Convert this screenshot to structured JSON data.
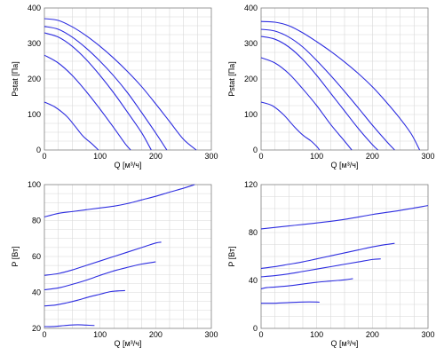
{
  "colors": {
    "curve": "#2d2de0",
    "grid": "#d8d8d8",
    "frame": "#808080"
  },
  "chart_data": [
    {
      "id": "pstat-left",
      "type": "line",
      "xlabel": "Q [м³/ч]",
      "ylabel": "Pstat [Па]",
      "xlim": [
        0,
        300
      ],
      "ylim": [
        0,
        400
      ],
      "xticks": [
        0,
        100,
        200,
        300
      ],
      "yticks": [
        0,
        100,
        200,
        300,
        400
      ],
      "grid": true,
      "series": [
        {
          "points": [
            [
              0,
              135
            ],
            [
              20,
              120
            ],
            [
              40,
              95
            ],
            [
              55,
              67
            ],
            [
              70,
              38
            ],
            [
              85,
              18
            ],
            [
              97,
              0
            ]
          ]
        },
        {
          "points": [
            [
              0,
              267
            ],
            [
              25,
              245
            ],
            [
              50,
              210
            ],
            [
              75,
              165
            ],
            [
              100,
              115
            ],
            [
              125,
              62
            ],
            [
              145,
              18
            ],
            [
              155,
              0
            ]
          ]
        },
        {
          "points": [
            [
              0,
              330
            ],
            [
              25,
              318
            ],
            [
              50,
              292
            ],
            [
              75,
              255
            ],
            [
              100,
              210
            ],
            [
              125,
              160
            ],
            [
              150,
              105
            ],
            [
              175,
              48
            ],
            [
              192,
              0
            ]
          ]
        },
        {
          "points": [
            [
              0,
              348
            ],
            [
              25,
              340
            ],
            [
              50,
              318
            ],
            [
              75,
              287
            ],
            [
              100,
              250
            ],
            [
              125,
              208
            ],
            [
              150,
              160
            ],
            [
              175,
              105
            ],
            [
              200,
              48
            ],
            [
              220,
              0
            ]
          ]
        },
        {
          "points": [
            [
              0,
              370
            ],
            [
              25,
              365
            ],
            [
              50,
              347
            ],
            [
              75,
              322
            ],
            [
              100,
              292
            ],
            [
              125,
              258
            ],
            [
              150,
              220
            ],
            [
              175,
              178
            ],
            [
              200,
              130
            ],
            [
              225,
              80
            ],
            [
              250,
              30
            ],
            [
              273,
              0
            ]
          ]
        }
      ]
    },
    {
      "id": "pstat-right",
      "type": "line",
      "xlabel": "Q [м³/ч]",
      "ylabel": "Pstat [Па]",
      "xlim": [
        0,
        300
      ],
      "ylim": [
        0,
        400
      ],
      "xticks": [
        0,
        100,
        200,
        300
      ],
      "yticks": [
        0,
        100,
        200,
        300,
        400
      ],
      "grid": true,
      "series": [
        {
          "points": [
            [
              0,
              135
            ],
            [
              20,
              125
            ],
            [
              40,
              100
            ],
            [
              60,
              65
            ],
            [
              75,
              42
            ],
            [
              90,
              25
            ],
            [
              100,
              10
            ],
            [
              105,
              0
            ]
          ]
        },
        {
          "points": [
            [
              0,
              260
            ],
            [
              25,
              245
            ],
            [
              50,
              215
            ],
            [
              75,
              172
            ],
            [
              100,
              125
            ],
            [
              125,
              72
            ],
            [
              150,
              25
            ],
            [
              163,
              0
            ]
          ]
        },
        {
          "points": [
            [
              0,
              320
            ],
            [
              25,
              312
            ],
            [
              50,
              290
            ],
            [
              75,
              255
            ],
            [
              100,
              210
            ],
            [
              125,
              160
            ],
            [
              150,
              110
            ],
            [
              175,
              60
            ],
            [
              200,
              15
            ],
            [
              210,
              0
            ]
          ]
        },
        {
          "points": [
            [
              0,
              340
            ],
            [
              25,
              335
            ],
            [
              50,
              318
            ],
            [
              75,
              290
            ],
            [
              100,
              252
            ],
            [
              125,
              210
            ],
            [
              150,
              165
            ],
            [
              175,
              118
            ],
            [
              200,
              70
            ],
            [
              225,
              25
            ],
            [
              240,
              0
            ]
          ]
        },
        {
          "points": [
            [
              0,
              362
            ],
            [
              25,
              360
            ],
            [
              50,
              350
            ],
            [
              75,
              330
            ],
            [
              100,
              305
            ],
            [
              125,
              278
            ],
            [
              150,
              248
            ],
            [
              175,
              215
            ],
            [
              200,
              178
            ],
            [
              225,
              135
            ],
            [
              250,
              88
            ],
            [
              270,
              45
            ],
            [
              285,
              0
            ]
          ]
        }
      ]
    },
    {
      "id": "power-left",
      "type": "line",
      "xlabel": "Q [м³/ч]",
      "ylabel": "P [Вт]",
      "xlim": [
        0,
        300
      ],
      "ylim": [
        20,
        100
      ],
      "xticks": [
        0,
        100,
        200,
        300
      ],
      "yticks": [
        20,
        40,
        60,
        80,
        100
      ],
      "grid": true,
      "series": [
        {
          "points": [
            [
              0,
              21
            ],
            [
              15,
              21
            ],
            [
              30,
              21.4
            ],
            [
              45,
              21.8
            ],
            [
              60,
              22
            ],
            [
              75,
              21.8
            ],
            [
              90,
              21.6
            ]
          ]
        },
        {
          "points": [
            [
              0,
              32.5
            ],
            [
              20,
              33
            ],
            [
              40,
              34.2
            ],
            [
              60,
              35.7
            ],
            [
              80,
              37.5
            ],
            [
              100,
              39
            ],
            [
              120,
              40.5
            ],
            [
              145,
              41
            ]
          ]
        },
        {
          "points": [
            [
              0,
              41.5
            ],
            [
              25,
              42.5
            ],
            [
              50,
              44.5
            ],
            [
              75,
              46.8
            ],
            [
              100,
              49.5
            ],
            [
              125,
              52
            ],
            [
              150,
              54
            ],
            [
              175,
              55.8
            ],
            [
              200,
              57
            ]
          ]
        },
        {
          "points": [
            [
              0,
              49.5
            ],
            [
              25,
              50.5
            ],
            [
              50,
              52.5
            ],
            [
              75,
              55
            ],
            [
              100,
              57.5
            ],
            [
              125,
              60
            ],
            [
              150,
              62.5
            ],
            [
              175,
              65
            ],
            [
              200,
              67.5
            ],
            [
              210,
              68
            ]
          ]
        },
        {
          "points": [
            [
              0,
              82
            ],
            [
              25,
              84
            ],
            [
              50,
              85
            ],
            [
              75,
              86
            ],
            [
              100,
              87
            ],
            [
              125,
              88
            ],
            [
              150,
              89.5
            ],
            [
              175,
              91.5
            ],
            [
              200,
              93.5
            ],
            [
              225,
              95.8
            ],
            [
              250,
              98
            ],
            [
              270,
              100
            ]
          ]
        }
      ]
    },
    {
      "id": "power-right",
      "type": "line",
      "xlabel": "Q [м³/ч]",
      "ylabel": "P [Вт]",
      "xlim": [
        0,
        300
      ],
      "ylim": [
        0,
        120
      ],
      "xticks": [
        0,
        100,
        200,
        300
      ],
      "yticks": [
        0,
        40,
        80,
        120
      ],
      "grid": true,
      "series": [
        {
          "points": [
            [
              0,
              21
            ],
            [
              25,
              21
            ],
            [
              50,
              21.5
            ],
            [
              75,
              22
            ],
            [
              100,
              22
            ],
            [
              105,
              21.8
            ]
          ]
        },
        {
          "points": [
            [
              0,
              33
            ],
            [
              10,
              34
            ],
            [
              25,
              34.5
            ],
            [
              50,
              35.5
            ],
            [
              75,
              37
            ],
            [
              100,
              38.5
            ],
            [
              125,
              39.5
            ],
            [
              150,
              40.5
            ],
            [
              165,
              41.5
            ]
          ]
        },
        {
          "points": [
            [
              0,
              43
            ],
            [
              25,
              44
            ],
            [
              50,
              45.5
            ],
            [
              75,
              47.5
            ],
            [
              100,
              49.5
            ],
            [
              125,
              51.5
            ],
            [
              150,
              53.5
            ],
            [
              175,
              55.5
            ],
            [
              200,
              57.5
            ],
            [
              215,
              58
            ]
          ]
        },
        {
          "points": [
            [
              0,
              50
            ],
            [
              25,
              51.5
            ],
            [
              50,
              53.5
            ],
            [
              75,
              55.5
            ],
            [
              100,
              58
            ],
            [
              125,
              60.5
            ],
            [
              150,
              63
            ],
            [
              175,
              65.5
            ],
            [
              200,
              68
            ],
            [
              225,
              70
            ],
            [
              240,
              71
            ]
          ]
        },
        {
          "points": [
            [
              0,
              83
            ],
            [
              50,
              85.5
            ],
            [
              100,
              88
            ],
            [
              150,
              91
            ],
            [
              200,
              95
            ],
            [
              250,
              98.5
            ],
            [
              300,
              102.5
            ]
          ]
        }
      ]
    }
  ]
}
